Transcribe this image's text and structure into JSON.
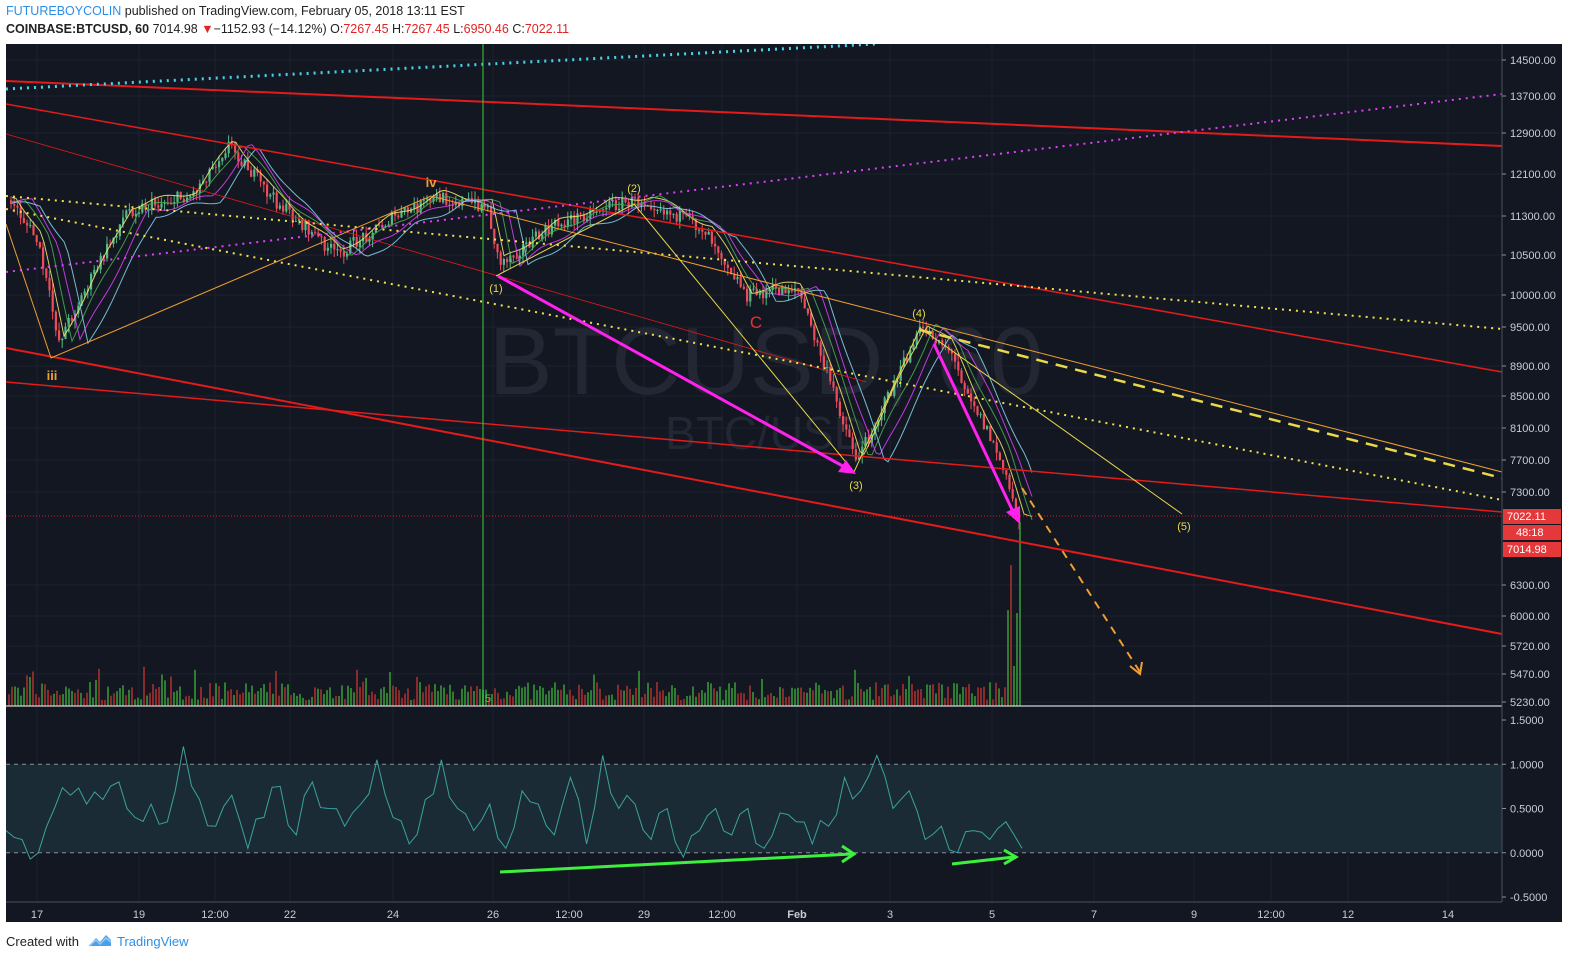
{
  "header": {
    "author": "FUTUREBOYCOLIN",
    "published_text": "published on TradingView.com, February 05, 2018 13:11 EST",
    "symbol": "COINBASE:BTCUSD, 60",
    "last_price": "7014.98",
    "change_arrow": "▼",
    "change": "−1152.93 (−14.12%)",
    "open_label": "O:",
    "open": "7267.45",
    "high_label": "H:",
    "high": "7267.45",
    "low_label": "L:",
    "low": "6950.46",
    "close_label": "C:",
    "close": "7022.11"
  },
  "watermark": {
    "symbol": "BTCUSD, 60",
    "pair": "BTC/USD"
  },
  "chart_data": [
    {
      "type": "line",
      "panel": "price",
      "ylim": [
        5230,
        14700
      ],
      "y_ticks": [
        "14500.00",
        "13700.00",
        "12900.00",
        "12100.00",
        "11300.00",
        "10500.00",
        "10000.00",
        "9500.00",
        "8900.00",
        "8500.00",
        "8100.00",
        "7700.00",
        "7300.00",
        "6300.00",
        "6000.00",
        "5720.00",
        "5470.00",
        "5230.00"
      ],
      "x_ticks": [
        "17",
        "19",
        "12:00",
        "22",
        "24",
        "26",
        "12:00",
        "29",
        "12:00",
        "Feb",
        "3",
        "5",
        "7",
        "9",
        "12:00",
        "12",
        "14"
      ],
      "price_labels": {
        "last": "7022.11",
        "countdown": "48:18",
        "close": "7014.98"
      },
      "wave_labels": [
        "iii",
        "iv",
        "(1)",
        "(2)",
        "(3)",
        "(4)",
        "(5)",
        "C"
      ],
      "vertical_marker_label": "5",
      "series": [
        {
          "x": [
            "17",
            "17",
            "18",
            "19",
            "20",
            "21",
            "22",
            "23",
            "24",
            "25",
            "26",
            "26",
            "27",
            "28",
            "29",
            "30",
            "31",
            "Feb",
            "2",
            "3",
            "4",
            "5",
            "5"
          ],
          "values": [
            11600,
            10800,
            9300,
            11400,
            11700,
            12700,
            11700,
            10500,
            11200,
            11650,
            11500,
            10400,
            11100,
            11500,
            11600,
            11000,
            10000,
            10100,
            7700,
            9500,
            9200,
            7800,
            7015
          ]
        }
      ]
    },
    {
      "type": "line",
      "panel": "oscillator",
      "ylim": [
        -0.5,
        1.5
      ],
      "y_ticks": [
        "1.5000",
        "1.0000",
        "0.5000",
        "0.0000",
        "-0.5000"
      ],
      "reference_levels": [
        0,
        1
      ],
      "series": [
        {
          "values": [
            0.25,
            0.15,
            0.0,
            0.5,
            0.65,
            0.55,
            0.6,
            0.8,
            0.4,
            0.55,
            0.35,
            1.2,
            0.6,
            0.3,
            0.65,
            0.05,
            0.4,
            0.75,
            0.2,
            0.8,
            0.5,
            0.3,
            0.55,
            1.05,
            0.4,
            0.1,
            0.6,
            1.05,
            0.5,
            0.25,
            0.55,
            0.05,
            0.7,
            0.55,
            0.2,
            0.85,
            0.1,
            1.1,
            0.5,
            0.55,
            0.15,
            0.5,
            -0.05,
            0.25,
            0.5,
            0.2,
            0.5,
            0.05,
            0.45,
            0.35,
            0.1,
            0.3,
            0.85,
            0.7,
            1.1,
            0.5,
            0.7,
            0.15,
            0.3,
            0.0,
            0.25,
            0.15,
            0.35,
            0.05
          ]
        }
      ]
    }
  ],
  "footer": {
    "created_with": "Created with",
    "brand": "TradingView"
  }
}
